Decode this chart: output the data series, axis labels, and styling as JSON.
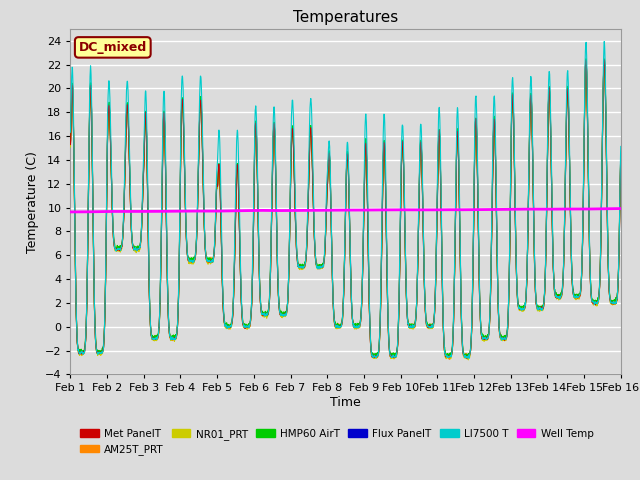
{
  "title": "Temperatures",
  "xlabel": "Time",
  "ylabel": "Temperature (C)",
  "ylim": [
    -4,
    25
  ],
  "xlim": [
    0,
    15
  ],
  "background_color": "#dcdcdc",
  "plot_bg_color": "#dcdcdc",
  "grid_color": "white",
  "annotation_text": "DC_mixed",
  "annotation_bg": "#ffff99",
  "annotation_border": "#8b0000",
  "legend_entries": [
    "Met PanelT",
    "AM25T_PRT",
    "NR01_PRT",
    "HMP60 AirT",
    "Flux PanelT",
    "LI7500 T",
    "Well Temp"
  ],
  "legend_colors": [
    "#cc0000",
    "#ff8800",
    "#cccc00",
    "#00cc00",
    "#0000cc",
    "#00cccc",
    "#ff00ff"
  ],
  "well_temp_value": 9.75,
  "xtick_labels": [
    "Feb 1",
    "Feb 2",
    "Feb 3",
    "Feb 4",
    "Feb 5",
    "Feb 6",
    "Feb 7",
    "Feb 8",
    "Feb 9",
    "Feb 10",
    "Feb 11",
    "Feb 12",
    "Feb 13",
    "Feb 14",
    "Feb 15",
    "Feb 16"
  ],
  "xtick_positions": [
    0,
    1,
    2,
    3,
    4,
    5,
    6,
    7,
    8,
    9,
    10,
    11,
    12,
    13,
    14,
    15
  ],
  "day_maxes": [
    21,
    19,
    18.5,
    19.5,
    14,
    17.5,
    17,
    15,
    16,
    16,
    17,
    18,
    20,
    20.5,
    23
  ],
  "day_mins": [
    -2.2,
    6.5,
    -1,
    5.5,
    0,
    1,
    5,
    0,
    -2.5,
    0,
    -2.5,
    -1,
    1.5,
    2.5,
    2
  ],
  "li7500_extra": [
    1.5,
    2,
    2,
    2,
    3,
    1.5,
    2.5,
    1,
    2.5,
    1.5,
    2,
    2,
    1.5,
    1.5,
    1.5
  ]
}
